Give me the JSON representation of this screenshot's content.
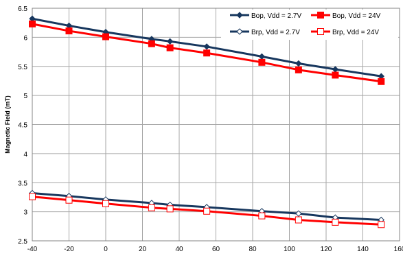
{
  "chart_data": {
    "type": "line",
    "title": "",
    "xlabel": "",
    "ylabel": "Magnetic Field (mT)",
    "xlim": [
      -40,
      160
    ],
    "ylim": [
      2.5,
      6.5
    ],
    "xticks": [
      -40,
      -20,
      0,
      20,
      40,
      60,
      80,
      100,
      120,
      140,
      160
    ],
    "yticks": [
      2.5,
      3,
      3.5,
      4,
      4.5,
      5,
      5.5,
      6,
      6.5
    ],
    "grid": true,
    "legend_position": "top-right",
    "series": [
      {
        "name": "Bop, Vdd = 2.7V",
        "color": "#17375e",
        "marker": "filled-diamond",
        "x": [
          -40,
          -20,
          0,
          25,
          35,
          55,
          85,
          105,
          125,
          150
        ],
        "y": [
          6.32,
          6.2,
          6.09,
          5.97,
          5.93,
          5.84,
          5.67,
          5.55,
          5.45,
          5.33
        ]
      },
      {
        "name": "Bop, Vdd = 24V",
        "color": "#ff0000",
        "marker": "filled-square",
        "x": [
          -40,
          -20,
          0,
          25,
          35,
          55,
          85,
          105,
          125,
          150
        ],
        "y": [
          6.23,
          6.11,
          6.01,
          5.89,
          5.82,
          5.73,
          5.57,
          5.44,
          5.35,
          5.24
        ]
      },
      {
        "name": "Brp, Vdd = 2.7V",
        "color": "#17375e",
        "marker": "open-diamond",
        "x": [
          -40,
          -20,
          0,
          25,
          35,
          55,
          85,
          105,
          125,
          150
        ],
        "y": [
          3.32,
          3.27,
          3.21,
          3.15,
          3.12,
          3.08,
          3.01,
          2.97,
          2.9,
          2.86
        ]
      },
      {
        "name": "Brp, Vdd = 24V",
        "color": "#ff0000",
        "marker": "open-square",
        "x": [
          -40,
          -20,
          0,
          25,
          35,
          55,
          85,
          105,
          125,
          150
        ],
        "y": [
          3.26,
          3.2,
          3.14,
          3.07,
          3.05,
          3.01,
          2.93,
          2.86,
          2.82,
          2.78
        ]
      }
    ]
  }
}
